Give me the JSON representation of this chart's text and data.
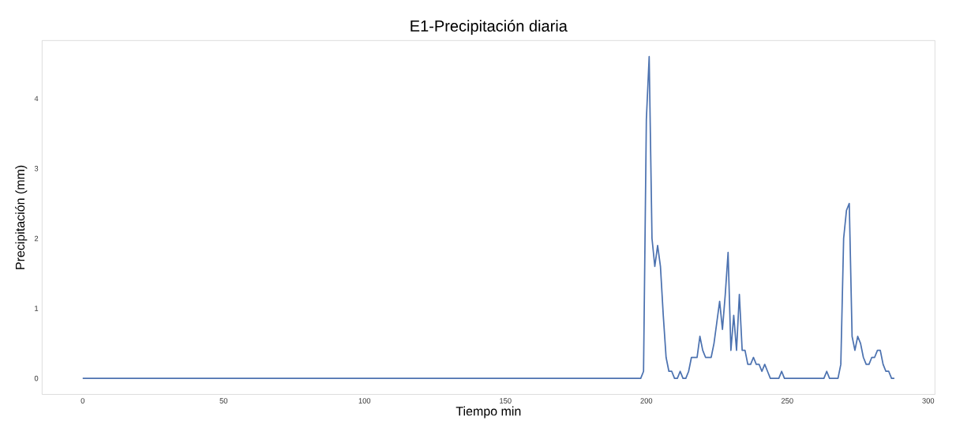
{
  "chart_data": {
    "type": "line",
    "title": "E1-Precipitación diaria",
    "xlabel": "Tiempo min",
    "ylabel": "Precipitación (mm)",
    "x": [
      0,
      198,
      199,
      200,
      201,
      202,
      203,
      204,
      205,
      206,
      207,
      208,
      209,
      210,
      211,
      212,
      213,
      214,
      215,
      216,
      217,
      218,
      219,
      220,
      221,
      222,
      223,
      224,
      225,
      226,
      227,
      228,
      229,
      230,
      231,
      232,
      233,
      234,
      235,
      236,
      237,
      238,
      239,
      240,
      241,
      242,
      243,
      244,
      245,
      246,
      247,
      248,
      249,
      250,
      251,
      252,
      253,
      254,
      255,
      256,
      257,
      258,
      259,
      260,
      261,
      262,
      263,
      264,
      265,
      266,
      267,
      268,
      269,
      270,
      271,
      272,
      273,
      274,
      275,
      276,
      277,
      278,
      279,
      280,
      281,
      282,
      283,
      284,
      285,
      286,
      287,
      288
    ],
    "values": [
      0,
      0,
      0.1,
      3.7,
      4.6,
      2.0,
      1.6,
      1.9,
      1.6,
      0.9,
      0.3,
      0.1,
      0.1,
      0,
      0,
      0.1,
      0,
      0,
      0.1,
      0.3,
      0.3,
      0.3,
      0.6,
      0.4,
      0.3,
      0.3,
      0.3,
      0.5,
      0.8,
      1.1,
      0.7,
      1.2,
      1.8,
      0.4,
      0.9,
      0.4,
      1.2,
      0.4,
      0.4,
      0.2,
      0.2,
      0.3,
      0.2,
      0.2,
      0.1,
      0.2,
      0.1,
      0,
      0,
      0,
      0,
      0.1,
      0,
      0,
      0,
      0,
      0,
      0,
      0,
      0,
      0,
      0,
      0,
      0,
      0,
      0,
      0,
      0.1,
      0,
      0,
      0,
      0,
      0.2,
      2.0,
      2.4,
      2.5,
      0.6,
      0.4,
      0.6,
      0.5,
      0.3,
      0.2,
      0.2,
      0.3,
      0.3,
      0.4,
      0.4,
      0.2,
      0.1,
      0.1,
      0,
      0
    ],
    "color": "#4c72b0",
    "xlim": [
      -14.4,
      302.4
    ],
    "ylim": [
      -0.23,
      4.83
    ],
    "xticks": [
      0,
      50,
      100,
      150,
      200,
      250,
      300
    ],
    "yticks": [
      0,
      1,
      2,
      3,
      4
    ]
  }
}
